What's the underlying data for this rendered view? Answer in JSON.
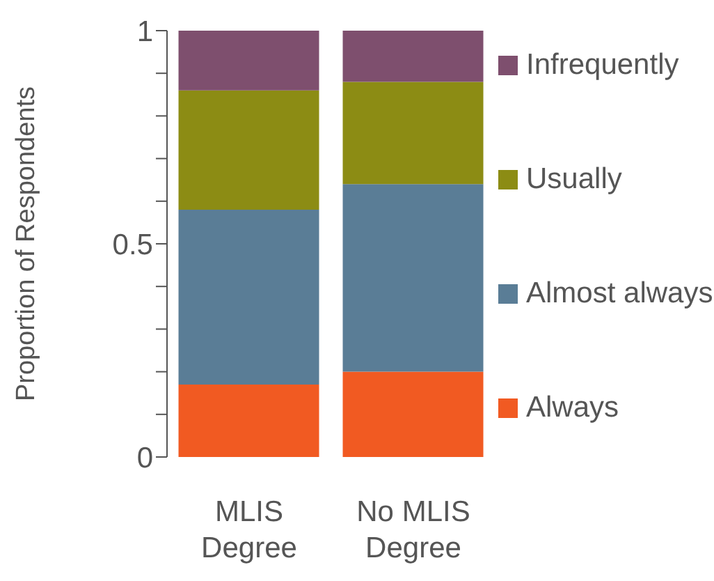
{
  "chart_data": {
    "type": "bar",
    "stacked": true,
    "ylabel": "Proportion of Respondents",
    "categories": [
      "MLIS Degree",
      "No MLIS Degree"
    ],
    "series": [
      {
        "name": "Always",
        "color": "#f15a22",
        "values": [
          0.17,
          0.2
        ]
      },
      {
        "name": "Almost always",
        "color": "#5a7d96",
        "values": [
          0.41,
          0.44
        ]
      },
      {
        "name": "Usually",
        "color": "#8c8c14",
        "values": [
          0.28,
          0.24
        ]
      },
      {
        "name": "Infrequently",
        "color": "#7e4f6e",
        "values": [
          0.14,
          0.12
        ]
      }
    ],
    "ylim": [
      0,
      1
    ],
    "yticks": [
      0,
      {
        "value": 0.1,
        "label": null
      },
      {
        "value": 0.2,
        "label": null
      },
      {
        "value": 0.3,
        "label": null
      },
      {
        "value": 0.4,
        "label": null
      },
      0.5,
      {
        "value": 0.6,
        "label": null
      },
      {
        "value": 0.7,
        "label": null
      },
      {
        "value": 0.8,
        "label": null
      },
      {
        "value": 0.9,
        "label": null
      },
      1
    ],
    "grid": false,
    "legend": "right"
  }
}
